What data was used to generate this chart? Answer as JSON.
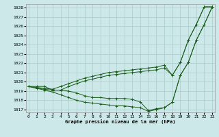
{
  "title": "Graphe pression niveau de la mer (hPa)",
  "xlim": [
    -0.3,
    23.3
  ],
  "ylim": [
    1016.7,
    1028.4
  ],
  "yticks": [
    1017,
    1018,
    1019,
    1020,
    1021,
    1022,
    1023,
    1024,
    1025,
    1026,
    1027,
    1028
  ],
  "xticks": [
    0,
    1,
    2,
    3,
    4,
    5,
    6,
    7,
    8,
    9,
    10,
    11,
    12,
    13,
    14,
    15,
    16,
    17,
    18,
    19,
    20,
    21,
    22,
    23
  ],
  "background_color": "#cce8e8",
  "grid_color": "#aacccc",
  "line_color": "#1a5c1a",
  "line1": [
    1019.5,
    1019.3,
    1019.2,
    1019.1,
    1019.1,
    1019.0,
    1018.8,
    1018.5,
    1018.3,
    1018.3,
    1018.2,
    1018.2,
    1018.2,
    1018.1,
    1017.8,
    1016.9,
    1017.1,
    1017.2,
    1017.8,
    1020.7,
    1022.1,
    1024.5,
    1026.2,
    1028.1
  ],
  "line2": [
    1019.5,
    1019.4,
    1019.3,
    1019.2,
    1019.5,
    1019.8,
    1020.1,
    1020.4,
    1020.6,
    1020.8,
    1021.0,
    1021.1,
    1021.2,
    1021.3,
    1021.4,
    1021.5,
    1021.6,
    1021.8,
    1020.7,
    1022.1,
    1024.5,
    1026.2,
    1028.1,
    1028.1
  ],
  "line3": [
    1019.5,
    1019.5,
    1019.5,
    1019.1,
    1019.1,
    1019.5,
    1019.8,
    1020.1,
    1020.3,
    1020.5,
    1020.7,
    1020.8,
    1020.9,
    1021.0,
    1021.1,
    1021.2,
    1021.3,
    1021.5,
    1020.7,
    1022.1,
    1024.5,
    1026.2,
    1028.1,
    1028.1
  ],
  "line4": [
    1019.5,
    1019.3,
    1019.1,
    1018.9,
    1018.6,
    1018.3,
    1018.0,
    1017.8,
    1017.7,
    1017.6,
    1017.5,
    1017.4,
    1017.4,
    1017.3,
    1017.2,
    1016.8,
    1017.0,
    1017.2,
    1017.8,
    1020.7,
    1022.1,
    1024.5,
    1026.2,
    1028.1
  ]
}
